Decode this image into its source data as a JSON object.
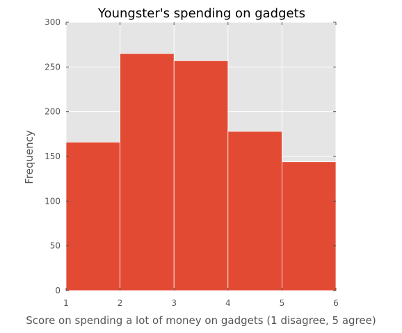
{
  "chart_data": {
    "type": "bar",
    "title": "Youngster's spending on gadgets",
    "xlabel": "Score on spending a lot of money on gadgets (1 disagree, 5 agree)",
    "ylabel": "Frequency",
    "bin_edges": [
      1,
      2,
      3,
      4,
      5,
      6
    ],
    "values": [
      166,
      265,
      257,
      178,
      144
    ],
    "xlim": [
      1,
      6
    ],
    "ylim": [
      0,
      300
    ],
    "x_ticks": [
      "1",
      "2",
      "3",
      "4",
      "5",
      "6"
    ],
    "y_ticks": [
      "0",
      "50",
      "100",
      "150",
      "200",
      "250",
      "300"
    ],
    "grid": true,
    "colors": {
      "bar": "#E24A33",
      "plot_background": "#E5E5E5",
      "grid": "#FFFFFF",
      "bar_edge": "#FFFFFF"
    }
  }
}
